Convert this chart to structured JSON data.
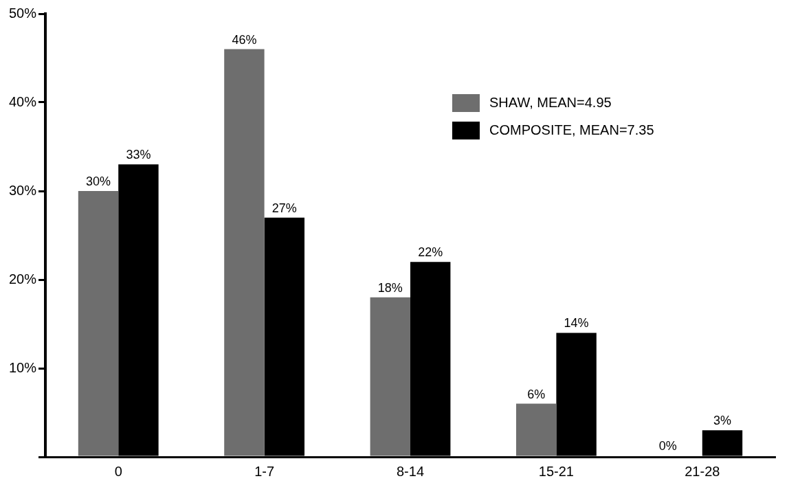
{
  "chart_data": {
    "type": "bar",
    "categories": [
      "0",
      "1-7",
      "8-14",
      "15-21",
      "21-28"
    ],
    "series": [
      {
        "name": "SHAW, MEAN=4.95",
        "color": "#6e6e6e",
        "values": [
          30,
          46,
          18,
          6,
          0
        ],
        "value_labels": [
          "30%",
          "46%",
          "18%",
          "6%",
          null
        ]
      },
      {
        "name": "COMPOSITE, MEAN=7.35",
        "color": "#000000",
        "values": [
          33,
          27,
          22,
          14,
          3
        ],
        "value_labels": [
          "33%",
          "27%",
          "22%",
          "14%",
          "3%"
        ]
      }
    ],
    "annotations": [
      {
        "text": "0%",
        "x": "21-28",
        "y": 0
      }
    ],
    "ylim": [
      0,
      50
    ],
    "yticks": [
      {
        "value": 0,
        "label": null
      },
      {
        "value": 10,
        "label": "10%"
      },
      {
        "value": 20,
        "label": "20%"
      },
      {
        "value": 30,
        "label": "30%"
      },
      {
        "value": 40,
        "label": "40%"
      },
      {
        "value": 50,
        "label": "50%"
      }
    ],
    "grid": false,
    "legend": "top right"
  }
}
